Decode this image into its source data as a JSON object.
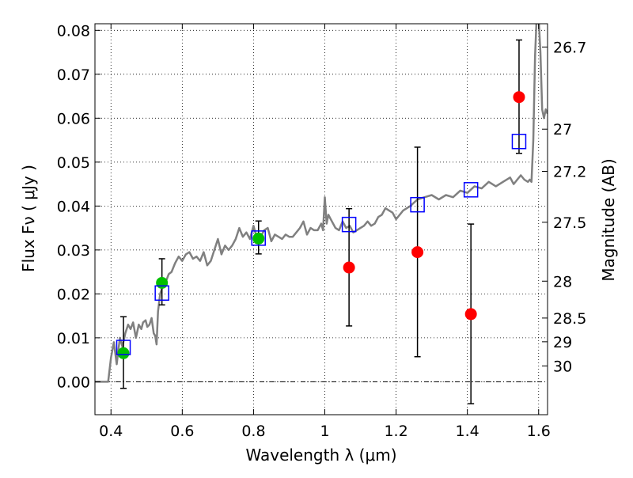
{
  "chart_data": {
    "type": "scatter",
    "xlabel": "Wavelength  λ (μm)",
    "ylabel": "Flux  Fν  ( μJy )",
    "y2label": "Magnitude (AB)",
    "xlim": [
      0.355,
      1.625
    ],
    "ylim": [
      -0.0075,
      0.0815
    ],
    "grid": true,
    "x_ticks": [
      {
        "value": 0.4,
        "label": "0.4"
      },
      {
        "value": 0.6,
        "label": "0.6"
      },
      {
        "value": 0.8,
        "label": "0.8"
      },
      {
        "value": 1.0,
        "label": "1"
      },
      {
        "value": 1.2,
        "label": "1.2"
      },
      {
        "value": 1.4,
        "label": "1.4"
      },
      {
        "value": 1.6,
        "label": "1.6"
      }
    ],
    "y_ticks": [
      {
        "value": 0.0,
        "label": "0.00"
      },
      {
        "value": 0.01,
        "label": "0.01"
      },
      {
        "value": 0.02,
        "label": "0.02"
      },
      {
        "value": 0.03,
        "label": "0.03"
      },
      {
        "value": 0.04,
        "label": "0.04"
      },
      {
        "value": 0.05,
        "label": "0.05"
      },
      {
        "value": 0.06,
        "label": "0.06"
      },
      {
        "value": 0.07,
        "label": "0.07"
      },
      {
        "value": 0.08,
        "label": "0.08"
      }
    ],
    "mag_ticks": [
      {
        "label": "26.7",
        "flux": 0.0762
      },
      {
        "label": "27",
        "flux": 0.0575
      },
      {
        "label": "27.2",
        "flux": 0.0479
      },
      {
        "label": "27.5",
        "flux": 0.0363
      },
      {
        "label": "28",
        "flux": 0.0229
      },
      {
        "label": "28.5",
        "flux": 0.0145
      },
      {
        "label": "29",
        "flux": 0.0091
      },
      {
        "label": "30",
        "flux": 0.0036
      }
    ],
    "series": [
      {
        "kind": "line",
        "color": "#808080",
        "x": [
          0.355,
          0.38,
          0.392,
          0.4,
          0.408,
          0.416,
          0.425,
          0.432,
          0.44,
          0.448,
          0.455,
          0.462,
          0.47,
          0.478,
          0.485,
          0.49,
          0.497,
          0.502,
          0.508,
          0.514,
          0.52,
          0.524,
          0.528,
          0.532,
          0.538,
          0.546,
          0.555,
          0.562,
          0.57,
          0.58,
          0.59,
          0.6,
          0.61,
          0.62,
          0.63,
          0.64,
          0.65,
          0.66,
          0.67,
          0.68,
          0.69,
          0.7,
          0.71,
          0.72,
          0.73,
          0.74,
          0.75,
          0.76,
          0.77,
          0.78,
          0.79,
          0.8,
          0.81,
          0.82,
          0.83,
          0.84,
          0.85,
          0.86,
          0.87,
          0.88,
          0.89,
          0.9,
          0.91,
          0.92,
          0.93,
          0.94,
          0.95,
          0.96,
          0.97,
          0.98,
          0.99,
          0.995,
          1.0,
          1.005,
          1.01,
          1.02,
          1.03,
          1.04,
          1.05,
          1.06,
          1.07,
          1.08,
          1.09,
          1.1,
          1.11,
          1.12,
          1.13,
          1.14,
          1.15,
          1.16,
          1.17,
          1.18,
          1.19,
          1.2,
          1.22,
          1.24,
          1.26,
          1.28,
          1.3,
          1.32,
          1.34,
          1.36,
          1.38,
          1.4,
          1.42,
          1.44,
          1.46,
          1.48,
          1.5,
          1.52,
          1.53,
          1.54,
          1.55,
          1.56,
          1.57,
          1.575,
          1.58,
          1.585,
          1.59,
          1.594,
          1.598,
          1.6,
          1.605,
          1.61,
          1.615,
          1.62,
          1.625
        ],
        "values": [
          0.0,
          0.0,
          0.0,
          0.0055,
          0.009,
          0.004,
          0.01,
          0.008,
          0.011,
          0.013,
          0.012,
          0.0135,
          0.01,
          0.013,
          0.012,
          0.0135,
          0.014,
          0.0125,
          0.013,
          0.0145,
          0.011,
          0.0105,
          0.0085,
          0.016,
          0.02,
          0.022,
          0.023,
          0.0245,
          0.025,
          0.027,
          0.0285,
          0.0275,
          0.029,
          0.0295,
          0.028,
          0.0285,
          0.0275,
          0.0295,
          0.0265,
          0.0275,
          0.03,
          0.0325,
          0.029,
          0.031,
          0.03,
          0.031,
          0.0325,
          0.035,
          0.033,
          0.034,
          0.0325,
          0.0355,
          0.0325,
          0.033,
          0.0345,
          0.035,
          0.032,
          0.0335,
          0.033,
          0.0325,
          0.0335,
          0.033,
          0.033,
          0.034,
          0.035,
          0.0365,
          0.0335,
          0.035,
          0.0345,
          0.0345,
          0.036,
          0.0345,
          0.042,
          0.036,
          0.038,
          0.0365,
          0.035,
          0.0345,
          0.0365,
          0.035,
          0.0355,
          0.034,
          0.0345,
          0.035,
          0.0355,
          0.0365,
          0.0355,
          0.036,
          0.0375,
          0.038,
          0.0395,
          0.039,
          0.0385,
          0.037,
          0.039,
          0.04,
          0.0415,
          0.042,
          0.0425,
          0.0415,
          0.0425,
          0.042,
          0.0435,
          0.043,
          0.0445,
          0.044,
          0.0455,
          0.0445,
          0.0455,
          0.0465,
          0.045,
          0.046,
          0.047,
          0.046,
          0.0455,
          0.046,
          0.0455,
          0.055,
          0.074,
          0.082,
          0.084,
          0.083,
          0.075,
          0.062,
          0.06,
          0.062,
          0.061
        ]
      },
      {
        "kind": "markers",
        "marker": "circle",
        "color": "#00c000",
        "x": [
          0.435,
          0.543,
          0.814
        ],
        "values": [
          0.0065,
          0.0225,
          0.0326
        ],
        "yerr_low": [
          0.008,
          0.005,
          0.0035
        ],
        "yerr_high": [
          0.0083,
          0.0055,
          0.004
        ]
      },
      {
        "kind": "markers",
        "marker": "circle",
        "color": "#ff0000",
        "x": [
          1.068,
          1.26,
          1.41,
          1.545
        ],
        "values": [
          0.026,
          0.0295,
          0.0154,
          0.0648
        ],
        "yerr_low": [
          0.0133,
          0.0238,
          0.0204,
          0.0128
        ],
        "yerr_high": [
          0.0134,
          0.0239,
          0.0205,
          0.013
        ]
      },
      {
        "kind": "markers",
        "marker": "open-square",
        "color": "#0000ff",
        "x": [
          0.435,
          0.543,
          0.814,
          1.068,
          1.26,
          1.41,
          1.545
        ],
        "values": [
          0.0078,
          0.0202,
          0.0327,
          0.0358,
          0.0403,
          0.0437,
          0.0547
        ]
      }
    ]
  }
}
